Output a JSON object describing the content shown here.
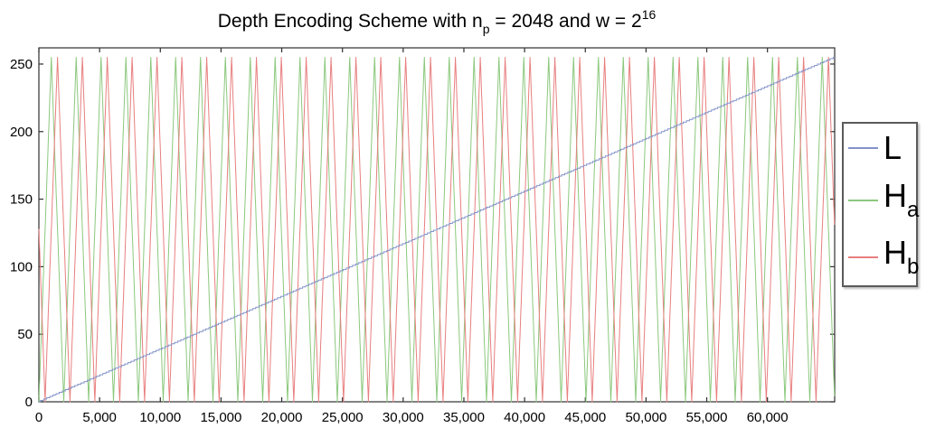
{
  "figure": {
    "background": "#ffffff"
  },
  "chart_data": {
    "type": "line",
    "title": "Depth Encoding Scheme with np = 2048 and w = 2^16",
    "title_parts": {
      "prefix": "Depth Encoding Scheme with n",
      "subscript": "p",
      "middle": " = 2048 and w = 2",
      "superscript": "16"
    },
    "xlabel": "",
    "ylabel": "",
    "xlim": [
      0,
      65535
    ],
    "ylim": [
      0,
      262
    ],
    "x_ticks": [
      0,
      5000,
      10000,
      15000,
      20000,
      25000,
      30000,
      35000,
      40000,
      45000,
      50000,
      55000,
      60000
    ],
    "x_tick_labels": [
      "0",
      "5,000",
      "10,000",
      "15,000",
      "20,000",
      "25,000",
      "30,000",
      "35,000",
      "40,000",
      "45,000",
      "50,000",
      "55,000",
      "60,000"
    ],
    "y_ticks": [
      0,
      50,
      100,
      150,
      200,
      250
    ],
    "y_tick_labels": [
      "0",
      "50",
      "100",
      "150",
      "200",
      "250"
    ],
    "grid": false,
    "axis_color": "#2f2f2f",
    "legend": {
      "position": "outside-right",
      "border_color": "#5a5a5a",
      "items": [
        {
          "name": "L",
          "label": "L",
          "sub": "",
          "color": "#8293c9"
        },
        {
          "name": "Ha",
          "label": "H",
          "sub": "a",
          "color": "#8cc87d"
        },
        {
          "name": "Hb",
          "label": "H",
          "sub": "b",
          "color": "#e87f7f"
        }
      ]
    },
    "series": [
      {
        "name": "L",
        "type": "ramp_step",
        "color": "#8293c9",
        "x_start": 0,
        "x_end": 65535,
        "y_start": 0,
        "y_end": 255,
        "levels": 256,
        "description": "linear depth ramp, quantized to 8 bits"
      },
      {
        "name": "Ha",
        "type": "triangle_step",
        "color": "#8cc87d",
        "period": 2048,
        "phase_offset": 0,
        "y_min": 0,
        "y_max": 255,
        "description": "triangle wave, value 0 at d=0, peak 255 at d=1024+2048k"
      },
      {
        "name": "Hb",
        "type": "triangle_step",
        "color": "#e87f7f",
        "period": 2048,
        "phase_offset": 1536,
        "y_min": 0,
        "y_max": 255,
        "description": "triangle wave shifted by quarter period, value 128 falling at d=0, zero at d=512, peak at d=1536+2048k"
      }
    ],
    "sample_step": 16
  }
}
